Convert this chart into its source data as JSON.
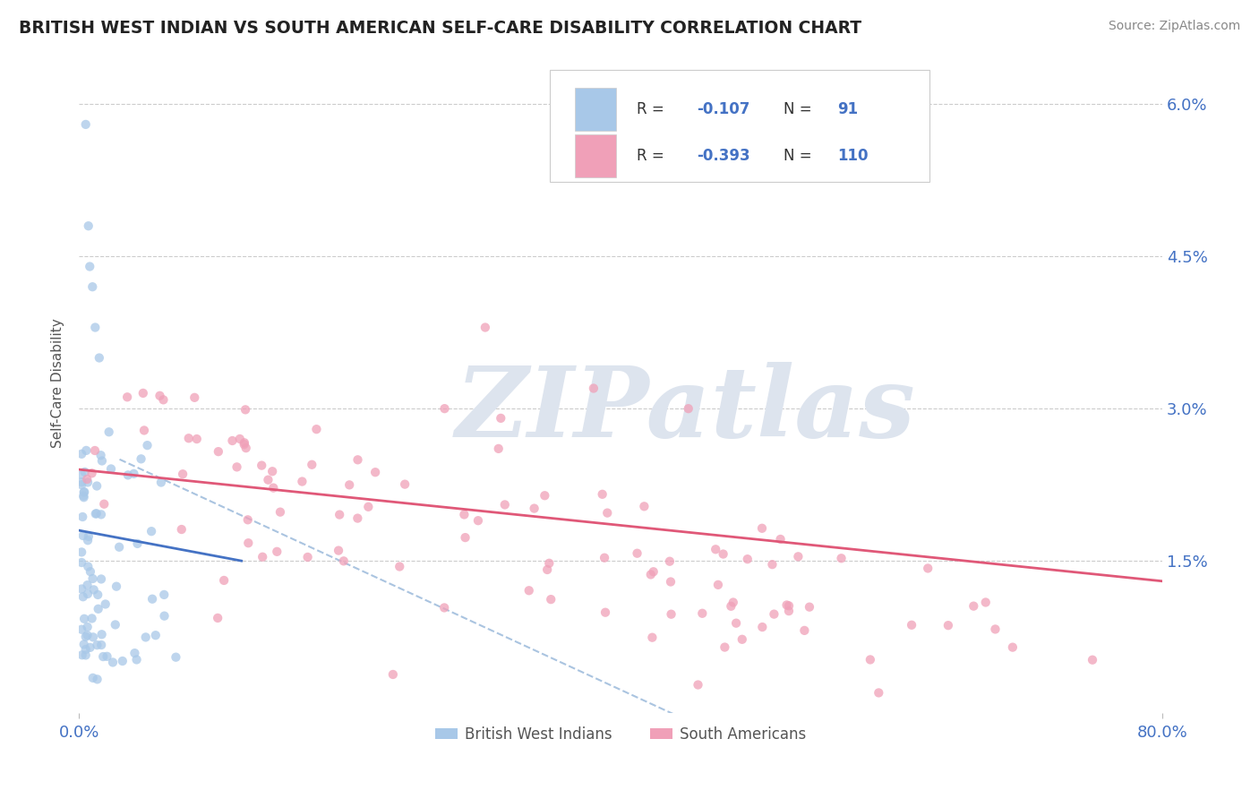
{
  "title": "BRITISH WEST INDIAN VS SOUTH AMERICAN SELF-CARE DISABILITY CORRELATION CHART",
  "source": "Source: ZipAtlas.com",
  "ylabel": "Self-Care Disability",
  "color_blue": "#a8c8e8",
  "color_pink": "#f0a0b8",
  "color_blue_dark": "#4472c4",
  "color_trend_blue": "#4472c4",
  "color_trend_pink": "#e05878",
  "color_trend_dashed": "#aac4e0",
  "watermark": "ZIPatlas",
  "watermark_color": "#dde4ee",
  "title_color": "#222222",
  "axis_label_color": "#4472c4",
  "legend_label1": "British West Indians",
  "legend_label2": "South Americans",
  "ytick_vals": [
    0.0,
    0.015,
    0.03,
    0.045,
    0.06
  ],
  "ytick_labels": [
    "",
    "1.5%",
    "3.0%",
    "4.5%",
    "6.0%"
  ],
  "xlim": [
    0.0,
    0.8
  ],
  "ylim": [
    0.0,
    0.065
  ]
}
